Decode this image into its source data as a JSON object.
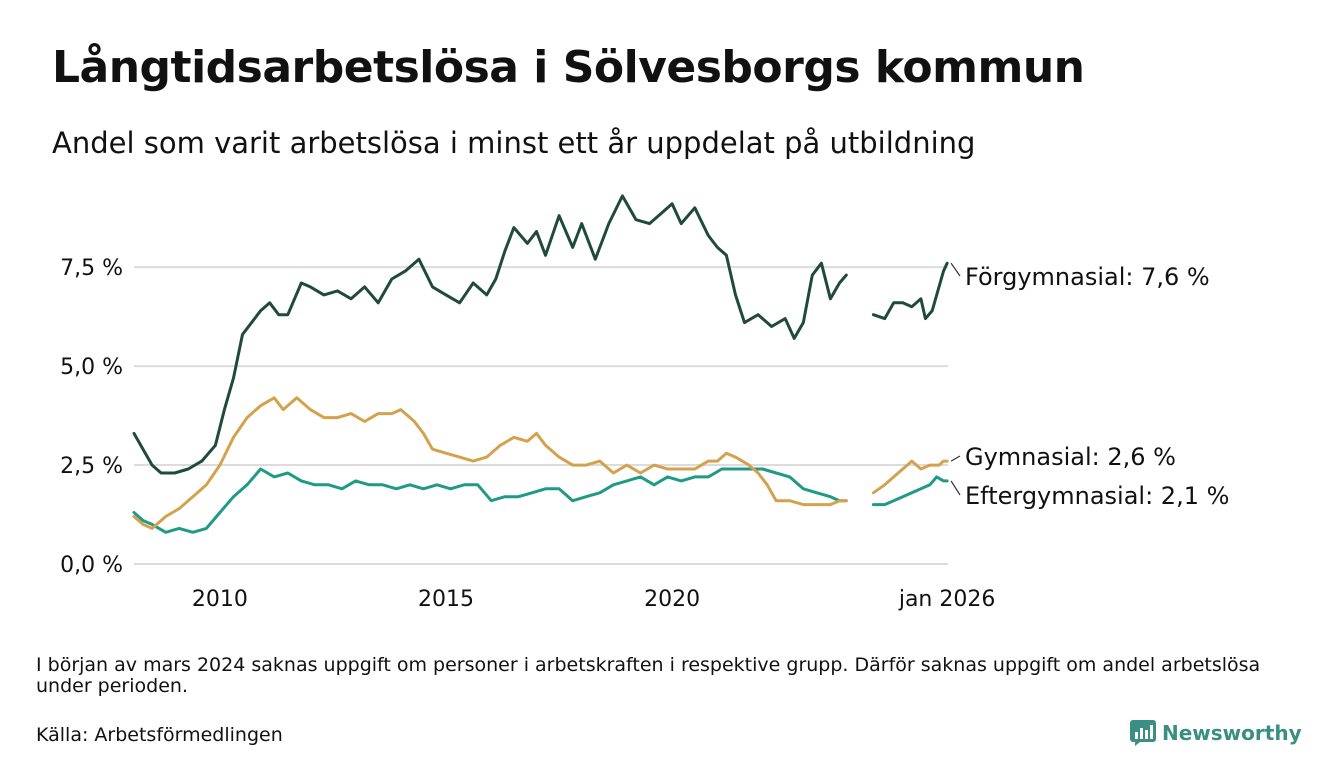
{
  "header": {
    "title": "Långtidsarbetslösa i Sölvesborgs kommun",
    "subtitle": "Andel som varit arbetslösa i minst ett år uppdelat på utbildning"
  },
  "footer": {
    "note": "I början av mars 2024 saknas uppgift om personer i arbetskraften i respektive grupp. Därför saknas uppgift om andel arbetslösa under perioden.",
    "source": "Källa: Arbetsförmedlingen",
    "brand": "Newsworthy",
    "brand_color": "#3a8f82"
  },
  "chart_data": {
    "type": "line",
    "title": "Långtidsarbetslösa i Sölvesborgs kommun",
    "subtitle": "Andel som varit arbetslösa i minst ett år uppdelat på utbildning",
    "xlabel": "",
    "ylabel": "",
    "x_unit": "decimal year",
    "xlim": [
      2008.1,
      2026.1
    ],
    "ylim": [
      0,
      9.5
    ],
    "grid": true,
    "legend": "direct labels at right end of lines",
    "x_ticks": [
      {
        "value": 2010,
        "label": "2010"
      },
      {
        "value": 2015,
        "label": "2015"
      },
      {
        "value": 2020,
        "label": "2020"
      },
      {
        "value": 2026.08,
        "label": "jan 2026"
      }
    ],
    "y_ticks": [
      {
        "value": 0,
        "label": "0,0 %"
      },
      {
        "value": 2.5,
        "label": "2,5 %"
      },
      {
        "value": 5,
        "label": "5,0 %"
      },
      {
        "value": 7.5,
        "label": "7,5 %"
      }
    ],
    "gap": {
      "from": 2023.9,
      "to": 2024.4
    },
    "series": [
      {
        "name": "Förgymnasial",
        "color": "#1f4a3c",
        "end_label": "Förgymnasial: 7,6 %",
        "last_value": 7.6,
        "segments": [
          [
            [
              2008.1,
              3.3
            ],
            [
              2008.3,
              2.9
            ],
            [
              2008.5,
              2.5
            ],
            [
              2008.7,
              2.3
            ],
            [
              2009.0,
              2.3
            ],
            [
              2009.3,
              2.4
            ],
            [
              2009.6,
              2.6
            ],
            [
              2009.9,
              3.0
            ],
            [
              2010.1,
              3.9
            ],
            [
              2010.3,
              4.7
            ],
            [
              2010.5,
              5.8
            ],
            [
              2010.7,
              6.1
            ],
            [
              2010.9,
              6.4
            ],
            [
              2011.1,
              6.6
            ],
            [
              2011.3,
              6.3
            ],
            [
              2011.5,
              6.3
            ],
            [
              2011.8,
              7.1
            ],
            [
              2012.0,
              7.0
            ],
            [
              2012.3,
              6.8
            ],
            [
              2012.6,
              6.9
            ],
            [
              2012.9,
              6.7
            ],
            [
              2013.2,
              7.0
            ],
            [
              2013.5,
              6.6
            ],
            [
              2013.8,
              7.2
            ],
            [
              2014.1,
              7.4
            ],
            [
              2014.4,
              7.7
            ],
            [
              2014.7,
              7.0
            ],
            [
              2015.0,
              6.8
            ],
            [
              2015.3,
              6.6
            ],
            [
              2015.6,
              7.1
            ],
            [
              2015.9,
              6.8
            ],
            [
              2016.1,
              7.2
            ],
            [
              2016.3,
              7.9
            ],
            [
              2016.5,
              8.5
            ],
            [
              2016.8,
              8.1
            ],
            [
              2017.0,
              8.4
            ],
            [
              2017.2,
              7.8
            ],
            [
              2017.5,
              8.8
            ],
            [
              2017.8,
              8.0
            ],
            [
              2018.0,
              8.6
            ],
            [
              2018.3,
              7.7
            ],
            [
              2018.6,
              8.6
            ],
            [
              2018.9,
              9.3
            ],
            [
              2019.2,
              8.7
            ],
            [
              2019.5,
              8.6
            ],
            [
              2019.8,
              8.9
            ],
            [
              2020.0,
              9.1
            ],
            [
              2020.2,
              8.6
            ],
            [
              2020.5,
              9.0
            ],
            [
              2020.8,
              8.3
            ],
            [
              2021.0,
              8.0
            ],
            [
              2021.2,
              7.8
            ],
            [
              2021.4,
              6.8
            ],
            [
              2021.6,
              6.1
            ],
            [
              2021.9,
              6.3
            ],
            [
              2022.2,
              6.0
            ],
            [
              2022.5,
              6.2
            ],
            [
              2022.7,
              5.7
            ],
            [
              2022.9,
              6.1
            ],
            [
              2023.1,
              7.3
            ],
            [
              2023.3,
              7.6
            ],
            [
              2023.5,
              6.7
            ],
            [
              2023.7,
              7.1
            ],
            [
              2023.85,
              7.3
            ]
          ],
          [
            [
              2024.45,
              6.3
            ],
            [
              2024.7,
              6.2
            ],
            [
              2024.9,
              6.6
            ],
            [
              2025.1,
              6.6
            ],
            [
              2025.3,
              6.5
            ],
            [
              2025.5,
              6.7
            ],
            [
              2025.6,
              6.2
            ],
            [
              2025.75,
              6.4
            ],
            [
              2025.9,
              7.0
            ],
            [
              2026.0,
              7.4
            ],
            [
              2026.08,
              7.6
            ]
          ]
        ]
      },
      {
        "name": "Gymnasial",
        "color": "#d4a24c",
        "end_label": "Gymnasial: 2,6 %",
        "last_value": 2.6,
        "segments": [
          [
            [
              2008.1,
              1.2
            ],
            [
              2008.3,
              1.0
            ],
            [
              2008.5,
              0.9
            ],
            [
              2008.8,
              1.2
            ],
            [
              2009.1,
              1.4
            ],
            [
              2009.4,
              1.7
            ],
            [
              2009.7,
              2.0
            ],
            [
              2010.0,
              2.5
            ],
            [
              2010.3,
              3.2
            ],
            [
              2010.6,
              3.7
            ],
            [
              2010.9,
              4.0
            ],
            [
              2011.2,
              4.2
            ],
            [
              2011.4,
              3.9
            ],
            [
              2011.7,
              4.2
            ],
            [
              2012.0,
              3.9
            ],
            [
              2012.3,
              3.7
            ],
            [
              2012.6,
              3.7
            ],
            [
              2012.9,
              3.8
            ],
            [
              2013.2,
              3.6
            ],
            [
              2013.5,
              3.8
            ],
            [
              2013.8,
              3.8
            ],
            [
              2014.0,
              3.9
            ],
            [
              2014.3,
              3.6
            ],
            [
              2014.5,
              3.3
            ],
            [
              2014.7,
              2.9
            ],
            [
              2015.0,
              2.8
            ],
            [
              2015.3,
              2.7
            ],
            [
              2015.6,
              2.6
            ],
            [
              2015.9,
              2.7
            ],
            [
              2016.2,
              3.0
            ],
            [
              2016.5,
              3.2
            ],
            [
              2016.8,
              3.1
            ],
            [
              2017.0,
              3.3
            ],
            [
              2017.2,
              3.0
            ],
            [
              2017.5,
              2.7
            ],
            [
              2017.8,
              2.5
            ],
            [
              2018.1,
              2.5
            ],
            [
              2018.4,
              2.6
            ],
            [
              2018.7,
              2.3
            ],
            [
              2019.0,
              2.5
            ],
            [
              2019.3,
              2.3
            ],
            [
              2019.6,
              2.5
            ],
            [
              2019.9,
              2.4
            ],
            [
              2020.2,
              2.4
            ],
            [
              2020.5,
              2.4
            ],
            [
              2020.8,
              2.6
            ],
            [
              2021.0,
              2.6
            ],
            [
              2021.2,
              2.8
            ],
            [
              2021.4,
              2.7
            ],
            [
              2021.7,
              2.5
            ],
            [
              2021.9,
              2.3
            ],
            [
              2022.1,
              2.0
            ],
            [
              2022.3,
              1.6
            ],
            [
              2022.6,
              1.6
            ],
            [
              2022.9,
              1.5
            ],
            [
              2023.2,
              1.5
            ],
            [
              2023.5,
              1.5
            ],
            [
              2023.7,
              1.6
            ],
            [
              2023.85,
              1.6
            ]
          ],
          [
            [
              2024.45,
              1.8
            ],
            [
              2024.7,
              2.0
            ],
            [
              2024.9,
              2.2
            ],
            [
              2025.1,
              2.4
            ],
            [
              2025.3,
              2.6
            ],
            [
              2025.5,
              2.4
            ],
            [
              2025.7,
              2.5
            ],
            [
              2025.9,
              2.5
            ],
            [
              2026.0,
              2.6
            ],
            [
              2026.08,
              2.6
            ]
          ]
        ]
      },
      {
        "name": "Eftergymnasial",
        "color": "#1f9a87",
        "end_label": "Eftergymnasial: 2,1 %",
        "last_value": 2.1,
        "segments": [
          [
            [
              2008.1,
              1.3
            ],
            [
              2008.3,
              1.1
            ],
            [
              2008.5,
              1.0
            ],
            [
              2008.8,
              0.8
            ],
            [
              2009.1,
              0.9
            ],
            [
              2009.4,
              0.8
            ],
            [
              2009.7,
              0.9
            ],
            [
              2010.0,
              1.3
            ],
            [
              2010.3,
              1.7
            ],
            [
              2010.6,
              2.0
            ],
            [
              2010.9,
              2.4
            ],
            [
              2011.2,
              2.2
            ],
            [
              2011.5,
              2.3
            ],
            [
              2011.8,
              2.1
            ],
            [
              2012.1,
              2.0
            ],
            [
              2012.4,
              2.0
            ],
            [
              2012.7,
              1.9
            ],
            [
              2013.0,
              2.1
            ],
            [
              2013.3,
              2.0
            ],
            [
              2013.6,
              2.0
            ],
            [
              2013.9,
              1.9
            ],
            [
              2014.2,
              2.0
            ],
            [
              2014.5,
              1.9
            ],
            [
              2014.8,
              2.0
            ],
            [
              2015.1,
              1.9
            ],
            [
              2015.4,
              2.0
            ],
            [
              2015.7,
              2.0
            ],
            [
              2016.0,
              1.6
            ],
            [
              2016.3,
              1.7
            ],
            [
              2016.6,
              1.7
            ],
            [
              2016.9,
              1.8
            ],
            [
              2017.2,
              1.9
            ],
            [
              2017.5,
              1.9
            ],
            [
              2017.8,
              1.6
            ],
            [
              2018.1,
              1.7
            ],
            [
              2018.4,
              1.8
            ],
            [
              2018.7,
              2.0
            ],
            [
              2019.0,
              2.1
            ],
            [
              2019.3,
              2.2
            ],
            [
              2019.6,
              2.0
            ],
            [
              2019.9,
              2.2
            ],
            [
              2020.2,
              2.1
            ],
            [
              2020.5,
              2.2
            ],
            [
              2020.8,
              2.2
            ],
            [
              2021.1,
              2.4
            ],
            [
              2021.4,
              2.4
            ],
            [
              2021.7,
              2.4
            ],
            [
              2022.0,
              2.4
            ],
            [
              2022.3,
              2.3
            ],
            [
              2022.6,
              2.2
            ],
            [
              2022.9,
              1.9
            ],
            [
              2023.2,
              1.8
            ],
            [
              2023.5,
              1.7
            ],
            [
              2023.7,
              1.6
            ],
            [
              2023.85,
              1.6
            ]
          ],
          [
            [
              2024.45,
              1.5
            ],
            [
              2024.7,
              1.5
            ],
            [
              2024.9,
              1.6
            ],
            [
              2025.1,
              1.7
            ],
            [
              2025.3,
              1.8
            ],
            [
              2025.5,
              1.9
            ],
            [
              2025.7,
              2.0
            ],
            [
              2025.85,
              2.2
            ],
            [
              2026.0,
              2.1
            ],
            [
              2026.08,
              2.1
            ]
          ]
        ]
      }
    ]
  }
}
